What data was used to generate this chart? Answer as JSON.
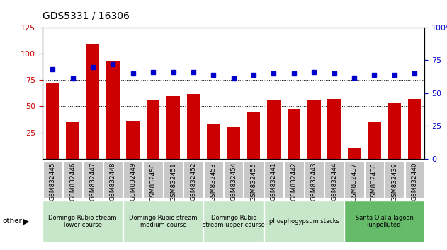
{
  "title": "GDS5331 / 16306",
  "samples": [
    "GSM832445",
    "GSM832446",
    "GSM832447",
    "GSM832448",
    "GSM832449",
    "GSM832450",
    "GSM832451",
    "GSM832452",
    "GSM832453",
    "GSM832454",
    "GSM832455",
    "GSM832441",
    "GSM832442",
    "GSM832443",
    "GSM832444",
    "GSM832437",
    "GSM832438",
    "GSM832439",
    "GSM832440"
  ],
  "counts": [
    72,
    35,
    109,
    93,
    36,
    56,
    60,
    62,
    33,
    30,
    44,
    56,
    47,
    56,
    57,
    10,
    35,
    53,
    57
  ],
  "percentiles": [
    68,
    61,
    70,
    72,
    65,
    66,
    66,
    66,
    64,
    61,
    64,
    65,
    65,
    66,
    65,
    62,
    64,
    64,
    65
  ],
  "groups": [
    {
      "label": "Domingo Rubio stream\nlower course",
      "start": 0,
      "end": 4
    },
    {
      "label": "Domingo Rubio stream\nmedium course",
      "start": 4,
      "end": 8
    },
    {
      "label": "Domingo Rubio\nstream upper course",
      "start": 8,
      "end": 11
    },
    {
      "label": "phosphogypsum stacks",
      "start": 11,
      "end": 15
    },
    {
      "label": "Santa Olalla lagoon\n(unpolluted)",
      "start": 15,
      "end": 19
    }
  ],
  "group_colors": [
    "#c8e6c9",
    "#c8e6c9",
    "#c8e6c9",
    "#c8e6c9",
    "#66bb6a"
  ],
  "ylim_left": [
    0,
    125
  ],
  "ylim_right": [
    0,
    100
  ],
  "yticks_left": [
    25,
    50,
    75,
    100,
    125
  ],
  "yticks_right": [
    0,
    25,
    50,
    75,
    100
  ],
  "bar_color": "#cc0000",
  "marker_color": "#0000cc",
  "tick_bg_color": "#c8c8c8",
  "grid_color": "#000000"
}
